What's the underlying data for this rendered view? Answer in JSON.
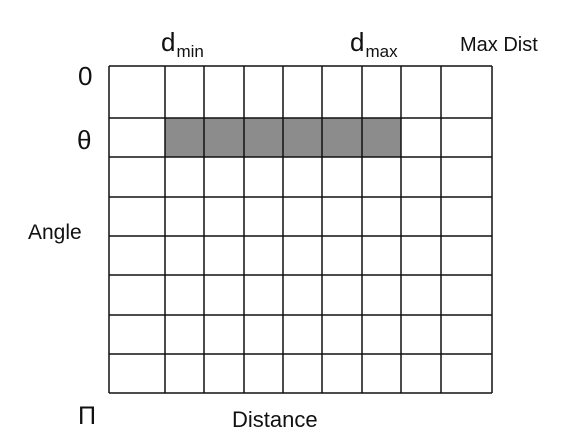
{
  "labels": {
    "zero": "0",
    "theta": "θ",
    "angle": "Angle",
    "pi": "Π",
    "distance": "Distance",
    "dmin_main": "d",
    "dmin_sub": "min",
    "dmax_main": "d",
    "dmax_sub": "max",
    "max_dist": "Max Dist"
  },
  "grid": {
    "columns": 10,
    "rows": 8,
    "highlighted_row": 1,
    "highlighted_columns": [
      2,
      7
    ],
    "highlight_color": "#8c8c8c",
    "line_color": "#111111"
  }
}
